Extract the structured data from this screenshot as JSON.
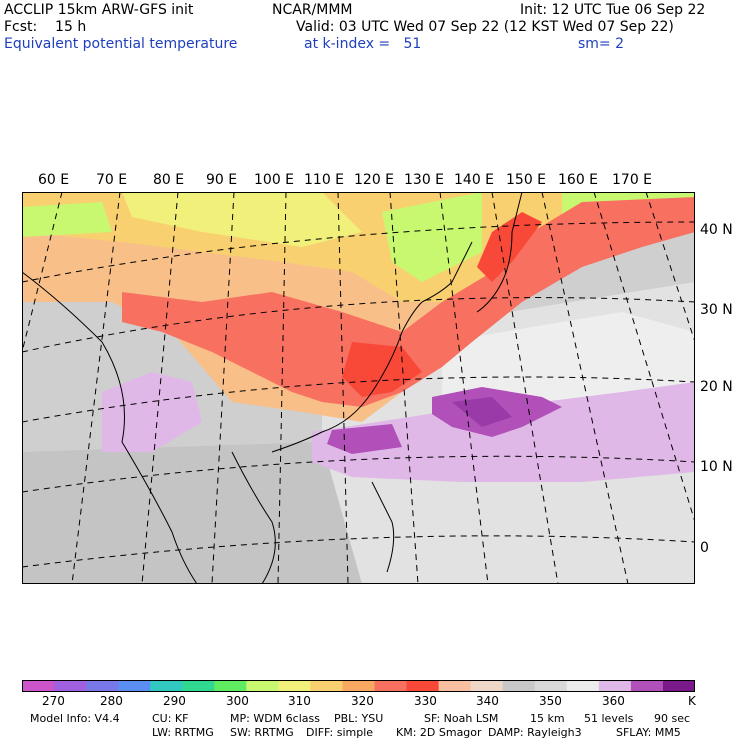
{
  "header": {
    "line1_left": "ACCLIP 15km ARW-GFS init",
    "line1_center": "NCAR/MMM",
    "line1_right": "Init: 12 UTC Tue 06 Sep 22",
    "line2_left": "Fcst:    15 h",
    "line2_right": "Valid: 03 UTC Wed 07 Sep 22 (12 KST Wed 07 Sep 22)",
    "line3_left": "Equivalent potential temperature",
    "line3_center": "at k-index =   51",
    "line3_right": "sm= 2"
  },
  "map": {
    "longitude_labels": [
      "60 E",
      "70 E",
      "80 E",
      "90 E",
      "100 E",
      "110 E",
      "120 E",
      "130 E",
      "140 E",
      "150 E",
      "160 E",
      "170 E"
    ],
    "latitude_labels": [
      "40 N",
      "30 N",
      "20 N",
      "10 N",
      "0"
    ]
  },
  "colorbar": {
    "unit": "K",
    "tick_labels": [
      "270",
      "280",
      "290",
      "300",
      "310",
      "320",
      "330",
      "340",
      "350",
      "360"
    ],
    "colors": [
      "#cc55cc",
      "#a060e0",
      "#7878e8",
      "#5a8ef0",
      "#30c8c0",
      "#30d890",
      "#60ec60",
      "#c8f870",
      "#f0f07a",
      "#f8d070",
      "#f8a860",
      "#f87060",
      "#f84838",
      "#f8c0a0",
      "#f0d8c8",
      "#c8c8c8",
      "#d8d8d8",
      "#ececec",
      "#e0b8e8",
      "#b050b8",
      "#7a1a8a"
    ]
  },
  "footer": {
    "line1": [
      "Model Info: V4.4",
      "CU: KF",
      "MP: WDM 6class",
      "PBL: YSU",
      "SF: Noah LSM",
      "15 km",
      "51 levels",
      "90 sec"
    ],
    "line2": [
      "LW: RRTMG",
      "SW: RRTMG",
      "DIFF: simple",
      "KM: 2D Smagor",
      "DAMP: Rayleigh3",
      "SFLAY: MM5"
    ]
  }
}
